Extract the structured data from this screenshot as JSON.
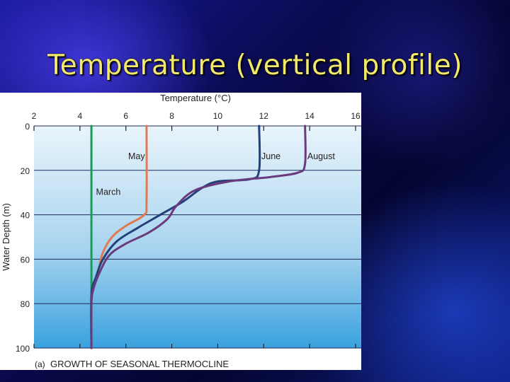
{
  "slide": {
    "title": "Temperature (vertical profile)"
  },
  "chart_data": {
    "type": "line",
    "title": "GROWTH OF SEASONAL THERMOCLINE",
    "panel_label": "(a)",
    "xlabel": "Temperature (°C)",
    "ylabel": "Water Depth (m)",
    "xlim": [
      2,
      16
    ],
    "ylim": [
      0,
      100
    ],
    "y_inverted": true,
    "x_ticks": [
      2,
      4,
      6,
      8,
      10,
      12,
      14,
      16
    ],
    "y_ticks": [
      0,
      20,
      40,
      60,
      80,
      100
    ],
    "grid": "horizontal",
    "series": [
      {
        "name": "March",
        "color": "#1a9b57",
        "points": [
          [
            4.5,
            0
          ],
          [
            4.5,
            100
          ]
        ]
      },
      {
        "name": "May",
        "color": "#e07a52",
        "points": [
          [
            6.9,
            0
          ],
          [
            6.9,
            34
          ],
          [
            6.8,
            40
          ],
          [
            6.0,
            45
          ],
          [
            5.4,
            50
          ],
          [
            5.0,
            57
          ],
          [
            4.8,
            65
          ],
          [
            4.6,
            72
          ],
          [
            4.5,
            78
          ],
          [
            4.5,
            100
          ]
        ]
      },
      {
        "name": "June",
        "color": "#24407a",
        "points": [
          [
            11.8,
            0
          ],
          [
            11.8,
            20
          ],
          [
            11.4,
            24
          ],
          [
            10.0,
            25
          ],
          [
            9.3,
            28
          ],
          [
            8.5,
            34
          ],
          [
            7.5,
            40
          ],
          [
            6.5,
            46
          ],
          [
            5.6,
            52
          ],
          [
            5.0,
            60
          ],
          [
            4.7,
            68
          ],
          [
            4.5,
            76
          ],
          [
            4.5,
            100
          ]
        ]
      },
      {
        "name": "August",
        "color": "#6b3a7e",
        "points": [
          [
            13.8,
            0
          ],
          [
            13.8,
            17
          ],
          [
            13.5,
            21
          ],
          [
            12.3,
            23
          ],
          [
            10.5,
            25
          ],
          [
            9.0,
            29
          ],
          [
            8.2,
            36
          ],
          [
            7.8,
            42
          ],
          [
            7.0,
            48
          ],
          [
            6.0,
            53
          ],
          [
            5.3,
            58
          ],
          [
            4.9,
            65
          ],
          [
            4.6,
            73
          ],
          [
            4.5,
            80
          ],
          [
            4.5,
            100
          ]
        ]
      }
    ],
    "series_labels": {
      "March": {
        "x": 4.7,
        "y": 31
      },
      "May": {
        "x": 6.1,
        "y": 15
      },
      "June": {
        "x": 11.9,
        "y": 15
      },
      "August": {
        "x": 13.9,
        "y": 15
      }
    }
  }
}
